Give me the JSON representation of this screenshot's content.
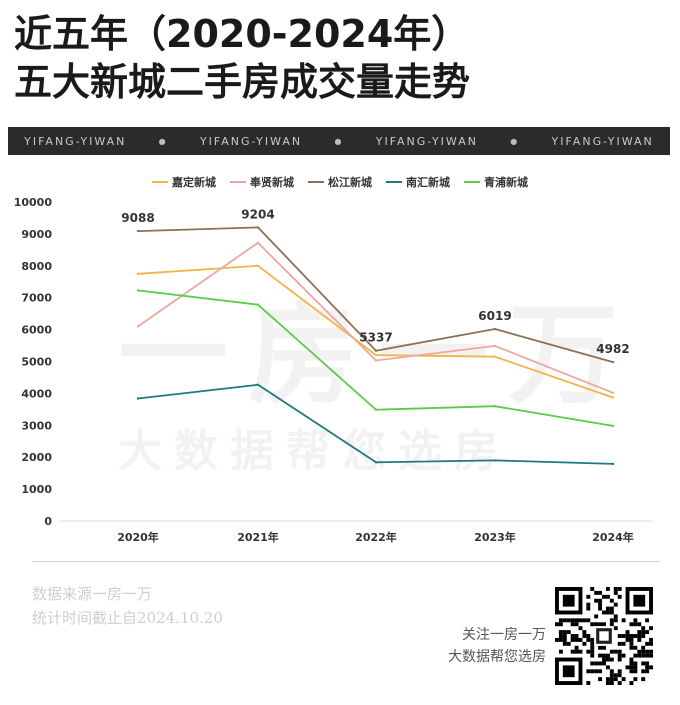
{
  "title": {
    "line1": "近五年（2020-2024年）",
    "line2": "五大新城二手房成交量走势"
  },
  "banner": [
    "YIFANG-YIWAN",
    "YIFANG-YIWAN",
    "YIFANG-YIWAN",
    "YIFANG-YIWAN"
  ],
  "watermark": {
    "line1": "一房一万",
    "line2": "大数据帮您选房"
  },
  "footer": {
    "source": "数据来源一房一万",
    "date": "统计时间截止自2024.10.20",
    "follow1": "关注一房一万",
    "follow2": "大数据帮您选房"
  },
  "chart_data": {
    "type": "line",
    "categories": [
      "2020年",
      "2021年",
      "2022年",
      "2023年",
      "2024年"
    ],
    "ylim": [
      0,
      10000
    ],
    "yticks": [
      0,
      1000,
      2000,
      3000,
      4000,
      5000,
      6000,
      7000,
      8000,
      9000,
      10000
    ],
    "grid": false,
    "legend_position": "top",
    "series": [
      {
        "name": "嘉定新城",
        "color": "#f0b548",
        "values": [
          7750,
          8000,
          5200,
          5150,
          3870
        ]
      },
      {
        "name": "奉贤新城",
        "color": "#eca79e",
        "values": [
          6100,
          8720,
          5030,
          5490,
          4020
        ]
      },
      {
        "name": "松江新城",
        "color": "#8e7054",
        "values": [
          9088,
          9204,
          5337,
          6019,
          4982
        ],
        "data_labels": [
          "9088",
          "9204",
          "5337",
          "6019",
          "4982"
        ]
      },
      {
        "name": "南汇新城",
        "color": "#1e7b7b",
        "values": [
          3840,
          4270,
          1840,
          1900,
          1790
        ]
      },
      {
        "name": "青浦新城",
        "color": "#5bcc45",
        "values": [
          7230,
          6780,
          3490,
          3600,
          2980
        ]
      }
    ]
  }
}
